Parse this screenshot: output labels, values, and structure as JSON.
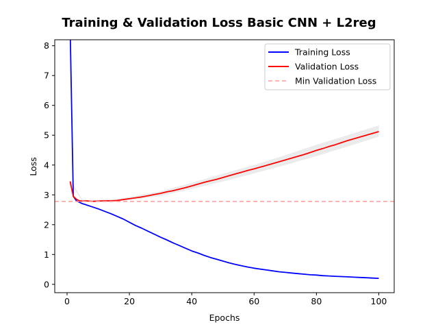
{
  "chart_data": {
    "type": "line",
    "title": "Training & Validation Loss Basic CNN + L2reg",
    "xlabel": "Epochs",
    "ylabel": "Loss",
    "xlim": [
      -3.95,
      104.95
    ],
    "ylim": [
      -0.28,
      8.2
    ],
    "x_ticks": [
      0,
      20,
      40,
      60,
      80,
      100
    ],
    "y_ticks": [
      0,
      1,
      2,
      3,
      4,
      5,
      6,
      7,
      8
    ],
    "grid": false,
    "legend_placement": "upper right",
    "series": [
      {
        "name": "Training Loss",
        "color": "#0000ff",
        "style": "solid",
        "x": [
          1,
          2,
          3,
          4,
          5,
          6,
          8,
          10,
          12,
          14,
          16,
          18,
          20,
          22,
          24,
          26,
          28,
          30,
          32,
          34,
          36,
          38,
          40,
          42,
          44,
          46,
          48,
          50,
          52,
          54,
          56,
          58,
          60,
          62,
          64,
          66,
          68,
          70,
          72,
          74,
          76,
          78,
          80,
          82,
          84,
          86,
          88,
          90,
          92,
          94,
          96,
          98,
          100
        ],
        "y": [
          8.6,
          2.95,
          2.8,
          2.75,
          2.7,
          2.67,
          2.6,
          2.53,
          2.45,
          2.37,
          2.28,
          2.19,
          2.08,
          1.97,
          1.88,
          1.78,
          1.68,
          1.58,
          1.49,
          1.39,
          1.3,
          1.21,
          1.12,
          1.05,
          0.97,
          0.9,
          0.84,
          0.78,
          0.72,
          0.67,
          0.62,
          0.58,
          0.54,
          0.51,
          0.48,
          0.45,
          0.42,
          0.4,
          0.38,
          0.36,
          0.34,
          0.32,
          0.31,
          0.29,
          0.28,
          0.27,
          0.26,
          0.25,
          0.24,
          0.23,
          0.22,
          0.21,
          0.2
        ]
      },
      {
        "name": "Validation Loss",
        "color": "#ff0000",
        "style": "solid",
        "x": [
          1,
          2,
          3,
          4,
          5,
          6,
          8,
          10,
          12,
          14,
          16,
          18,
          20,
          22,
          24,
          26,
          28,
          30,
          32,
          34,
          36,
          38,
          40,
          42,
          44,
          46,
          48,
          50,
          52,
          54,
          56,
          58,
          60,
          62,
          64,
          66,
          68,
          70,
          72,
          74,
          76,
          78,
          80,
          82,
          84,
          86,
          88,
          90,
          92,
          94,
          96,
          98,
          100
        ],
        "y": [
          3.45,
          2.95,
          2.85,
          2.8,
          2.79,
          2.8,
          2.78,
          2.79,
          2.8,
          2.8,
          2.81,
          2.84,
          2.87,
          2.9,
          2.93,
          2.97,
          3.01,
          3.05,
          3.1,
          3.14,
          3.19,
          3.24,
          3.3,
          3.36,
          3.42,
          3.47,
          3.52,
          3.58,
          3.64,
          3.7,
          3.76,
          3.82,
          3.87,
          3.93,
          3.99,
          4.05,
          4.11,
          4.17,
          4.23,
          4.29,
          4.35,
          4.42,
          4.49,
          4.55,
          4.62,
          4.68,
          4.75,
          4.82,
          4.88,
          4.94,
          5.0,
          5.06,
          5.12
        ]
      },
      {
        "name": "Min Validation Loss",
        "color": "#ff9999",
        "style": "dashed",
        "y_constant": 2.78
      }
    ],
    "validation_band": {
      "color": "#d3d3d3",
      "x": [
        1,
        5,
        10,
        16,
        20,
        30,
        40,
        50,
        60,
        70,
        80,
        90,
        100
      ],
      "lower": [
        3.4,
        2.77,
        2.77,
        2.78,
        2.83,
        2.96,
        3.2,
        3.45,
        3.72,
        4.0,
        4.3,
        4.62,
        4.95
      ],
      "upper": [
        3.5,
        2.83,
        2.83,
        2.86,
        2.93,
        3.12,
        3.4,
        3.71,
        4.0,
        4.33,
        4.68,
        5.0,
        5.33
      ]
    }
  }
}
